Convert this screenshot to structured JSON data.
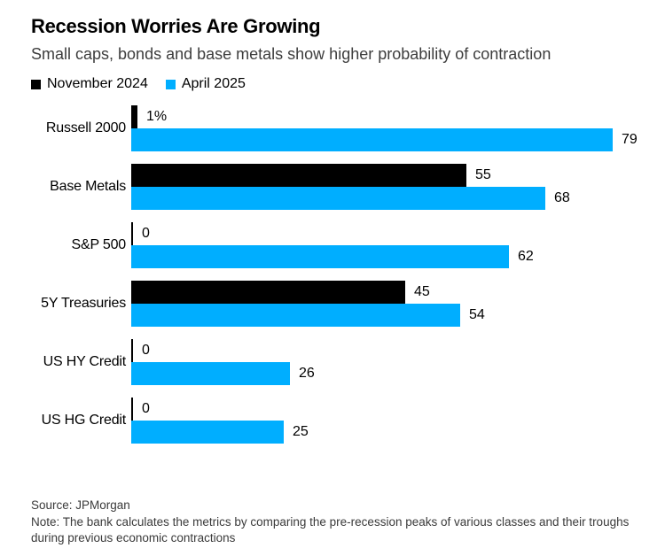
{
  "header": {
    "title": "Recession Worries Are Growing",
    "subtitle": "Small caps, bonds and base metals show higher probability of contraction"
  },
  "legend": [
    {
      "label": "November 2024",
      "color": "#000000"
    },
    {
      "label": "April 2025",
      "color": "#00aeff"
    }
  ],
  "chart_data": {
    "type": "bar",
    "orientation": "horizontal",
    "title": "Recession Worries Are Growing",
    "subtitle": "Small caps, bonds and base metals show higher probability of contraction",
    "categories": [
      "Russell 2000",
      "Base Metals",
      "S&P 500",
      "5Y Treasuries",
      "US HY Credit",
      "US HG Credit"
    ],
    "series": [
      {
        "name": "November 2024",
        "color": "#000000",
        "values": [
          1,
          55,
          0,
          45,
          0,
          0
        ],
        "labels": [
          "1%",
          "55",
          "0",
          "45",
          "0",
          "0"
        ]
      },
      {
        "name": "April 2025",
        "color": "#00aeff",
        "values": [
          79,
          68,
          62,
          54,
          26,
          25
        ],
        "labels": [
          "79",
          "68",
          "62",
          "54",
          "26",
          "25"
        ]
      }
    ],
    "xlim": [
      0,
      80
    ],
    "grid": false,
    "legend_position": "top",
    "unit": "probability of contraction, %"
  },
  "footer": {
    "source": "Source: JPMorgan",
    "note": "Note: The bank calculates the metrics by comparing the pre-recession peaks of various classes and their troughs during previous economic contractions"
  }
}
